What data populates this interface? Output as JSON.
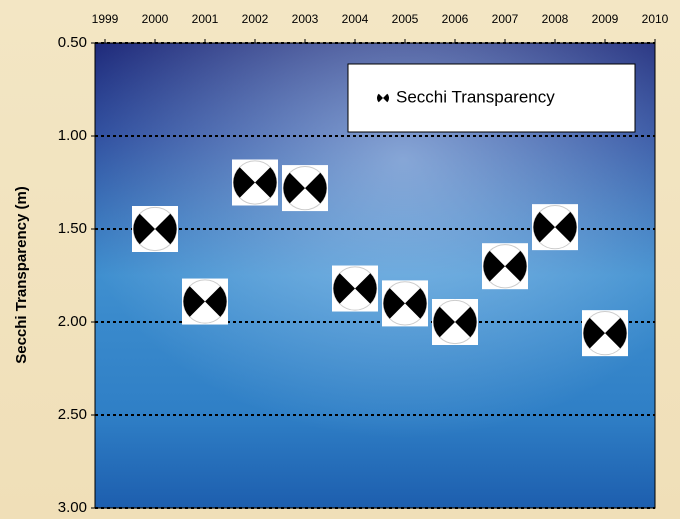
{
  "chart_data": {
    "type": "scatter",
    "y_label": "Secchi Transparency (m)",
    "x": [
      2000,
      2001,
      2002,
      2003,
      2004,
      2005,
      2006,
      2007,
      2008,
      2009
    ],
    "series": [
      {
        "name": "Secchi Transparency",
        "color": "#000000",
        "values": [
          1.5,
          1.89,
          1.25,
          1.28,
          1.82,
          1.9,
          2.0,
          1.7,
          1.49,
          2.06
        ]
      }
    ],
    "xlim": [
      1998.8,
      2010
    ],
    "xticks": [
      1999,
      2000,
      2001,
      2002,
      2003,
      2004,
      2005,
      2006,
      2007,
      2008,
      2009,
      2010
    ],
    "ylim": [
      0.5,
      3.0
    ],
    "yticks": [
      {
        "value": 0.5,
        "label": "0.50"
      },
      {
        "value": 1.0,
        "label": "1.00"
      },
      {
        "value": 1.5,
        "label": "1.50"
      },
      {
        "value": 2.0,
        "label": "2.00"
      },
      {
        "value": 2.5,
        "label": "2.50"
      },
      {
        "value": 3.0,
        "label": "3.00"
      }
    ],
    "y_inverted": true,
    "grid": true,
    "legend": "top-right"
  }
}
